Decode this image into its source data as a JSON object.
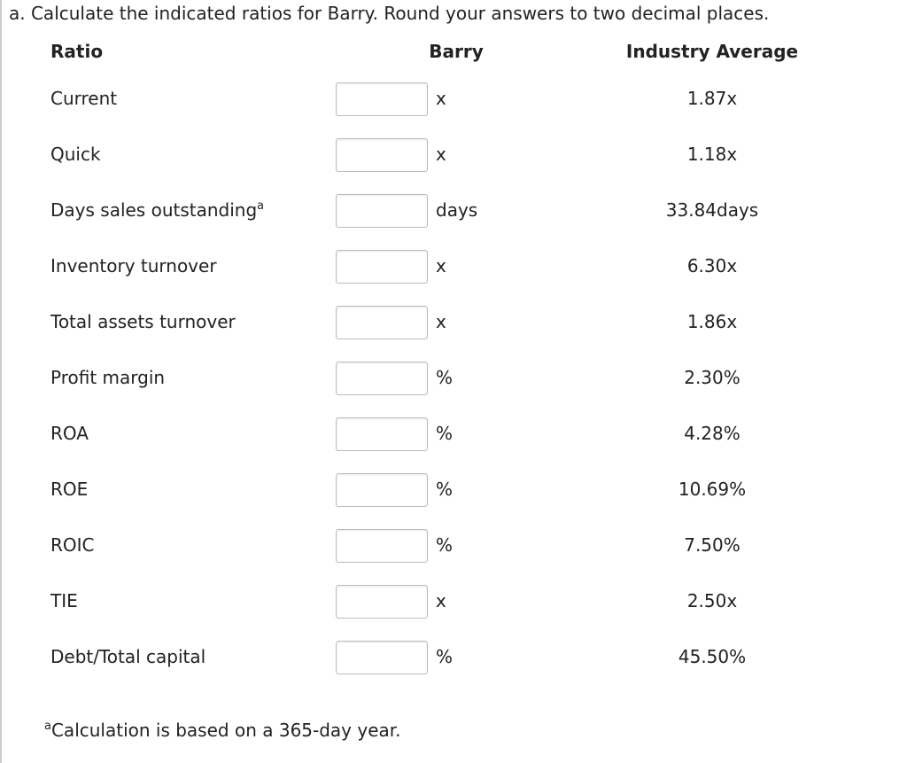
{
  "question": "a. Calculate the indicated ratios for Barry. Round your answers to two decimal places.",
  "table": {
    "headers": [
      "Ratio",
      "Barry",
      "Industry Average"
    ],
    "rows": [
      {
        "ratio": "Current",
        "unit": "x",
        "industry": "1.87x"
      },
      {
        "ratio": "Quick",
        "unit": "x",
        "industry": "1.18x"
      },
      {
        "ratio": "Days sales outstanding",
        "marker": "a",
        "unit": "days",
        "industry": "33.84days"
      },
      {
        "ratio": "Inventory turnover",
        "unit": "x",
        "industry": "6.30x"
      },
      {
        "ratio": "Total assets turnover",
        "unit": "x",
        "industry": "1.86x"
      },
      {
        "ratio": "Profit margin",
        "unit": "%",
        "industry": "2.30%"
      },
      {
        "ratio": "ROA",
        "unit": "%",
        "industry": "4.28%"
      },
      {
        "ratio": "ROE",
        "unit": "%",
        "industry": "10.69%"
      },
      {
        "ratio": "ROIC",
        "unit": "%",
        "industry": "7.50%"
      },
      {
        "ratio": "TIE",
        "unit": "x",
        "industry": "2.50x"
      },
      {
        "ratio": "Debt/Total capital",
        "unit": "%",
        "industry": "45.50%"
      }
    ]
  },
  "footnote": {
    "marker": "a",
    "text": "Calculation is based on a 365-day year."
  }
}
